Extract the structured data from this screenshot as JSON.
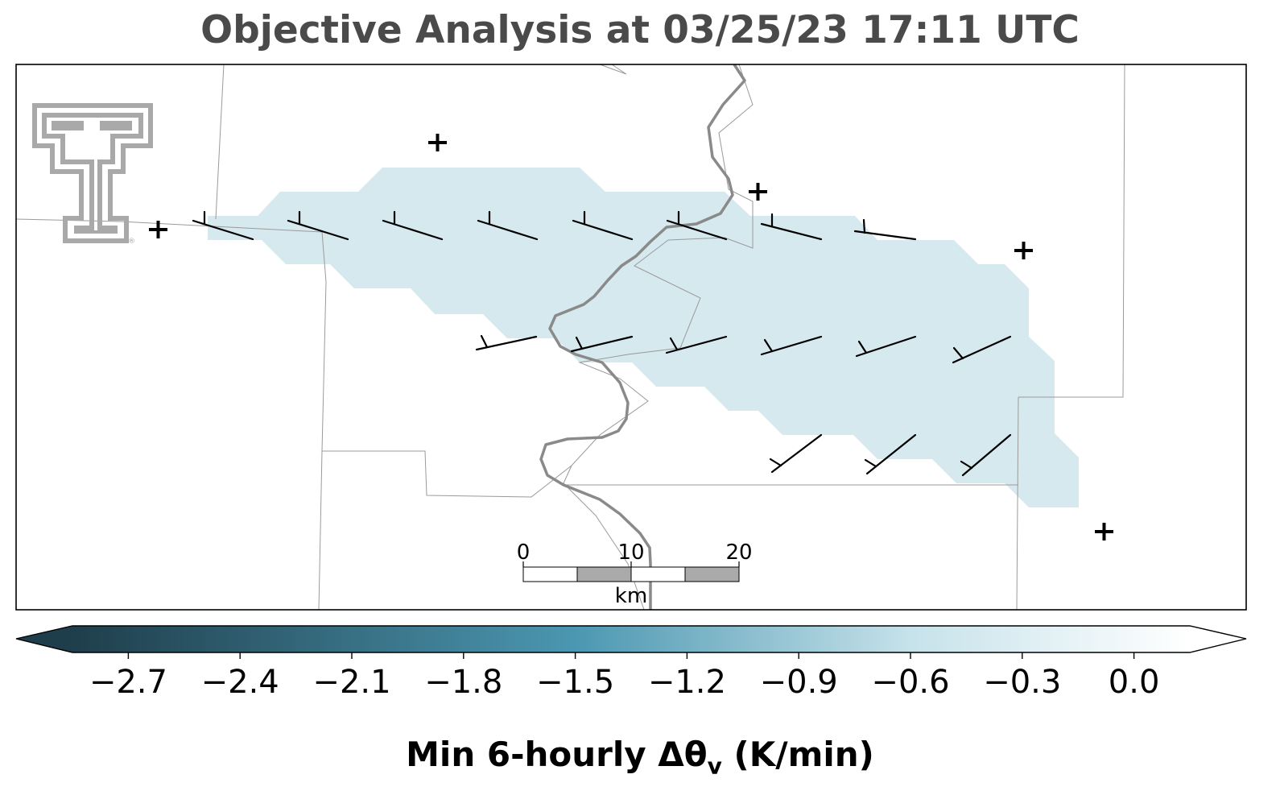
{
  "title": "Objective Analysis at 03/25/23 17:11 UTC",
  "colors": {
    "shading": "#d6e9ef",
    "county_lines": "#9a9a9a",
    "river": "#8a8a8a",
    "barbs": "#000000",
    "logo": "#a9a9a9",
    "cbar_dark": "#1f3e4b",
    "cbar_mid": "#4b97b1",
    "cbar_light": "#c6e2ea",
    "cbar_white": "#ffffff"
  },
  "logo": {
    "icon": "texas-tech-double-t-logo",
    "mark": "®"
  },
  "scale_bar": {
    "labels": [
      "0",
      "10",
      "20"
    ],
    "unit": "km"
  },
  "colorbar": {
    "label_main": "Min 6-hourly Δθ",
    "label_sub": "v",
    "label_unit": " (K/min)",
    "vmin": -2.85,
    "vmax": 0.15,
    "ticks": [
      -2.7,
      -2.4,
      -2.1,
      -1.8,
      -1.5,
      -1.2,
      -0.9,
      -0.6,
      -0.3,
      0.0
    ],
    "tick_labels": [
      "−2.7",
      "−2.4",
      "−2.1",
      "−1.8",
      "−1.5",
      "−1.2",
      "−0.9",
      "−0.6",
      "−0.3",
      "0.0"
    ]
  }
}
